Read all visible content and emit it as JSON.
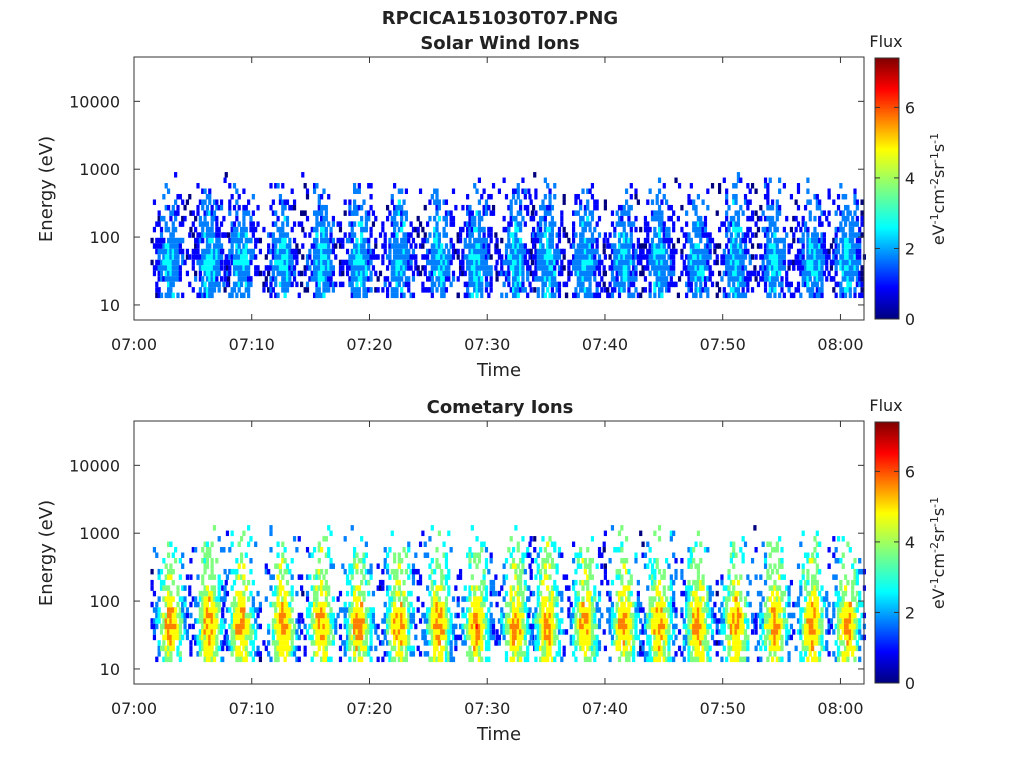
{
  "figure_title": "RPCICA151030T07.PNG",
  "colormap": [
    "#00007f",
    "#0000ff",
    "#007fff",
    "#00ffff",
    "#7fff7f",
    "#ffff00",
    "#ff7f00",
    "#ff0000",
    "#7f0000"
  ],
  "chart_data": [
    {
      "type": "heatmap",
      "title": "Solar Wind Ions",
      "xlabel": "Time",
      "ylabel": "Energy (eV)",
      "x_ticks": [
        "07:00",
        "07:10",
        "07:20",
        "07:30",
        "07:40",
        "07:50",
        "08:00"
      ],
      "x_range_minutes": [
        0,
        62
      ],
      "y_scale": "log",
      "y_range": [
        6,
        45000
      ],
      "y_ticks": [
        "10",
        "100",
        "1000",
        "10000"
      ],
      "colorbar": {
        "label": "Flux",
        "units": "eV-1cm-2sr-1s-1",
        "range": [
          0,
          7.4
        ],
        "ticks": [
          "0",
          "2",
          "4",
          "6"
        ]
      },
      "bursts_minutes": [
        3,
        6.3,
        9,
        12.5,
        15.8,
        19,
        22.4,
        25.8,
        29,
        32.3,
        35,
        38.2,
        41.5,
        44.5,
        47.8,
        51,
        54.3,
        57.5,
        60.5
      ],
      "typical_flux": 2.5,
      "peak_energy_eV": 40,
      "max_energy_eV": 500
    },
    {
      "type": "heatmap",
      "title": "Cometary Ions",
      "xlabel": "Time",
      "ylabel": "Energy (eV)",
      "x_ticks": [
        "07:00",
        "07:10",
        "07:20",
        "07:30",
        "07:40",
        "07:50",
        "08:00"
      ],
      "x_range_minutes": [
        0,
        62
      ],
      "y_scale": "log",
      "y_range": [
        6,
        45000
      ],
      "y_ticks": [
        "10",
        "100",
        "1000",
        "10000"
      ],
      "colorbar": {
        "label": "Flux",
        "units": "eV-1cm-2sr-1s-1",
        "range": [
          0,
          7.4
        ],
        "ticks": [
          "0",
          "2",
          "4",
          "6"
        ]
      },
      "bursts_minutes": [
        3,
        6.3,
        9,
        12.5,
        15.8,
        19,
        22.4,
        25.8,
        29,
        32.3,
        35,
        38.2,
        41.5,
        44.5,
        47.8,
        51,
        54.3,
        57.5,
        60.5
      ],
      "typical_flux": 5.5,
      "peak_energy_eV": 40,
      "max_energy_eV": 800
    }
  ]
}
